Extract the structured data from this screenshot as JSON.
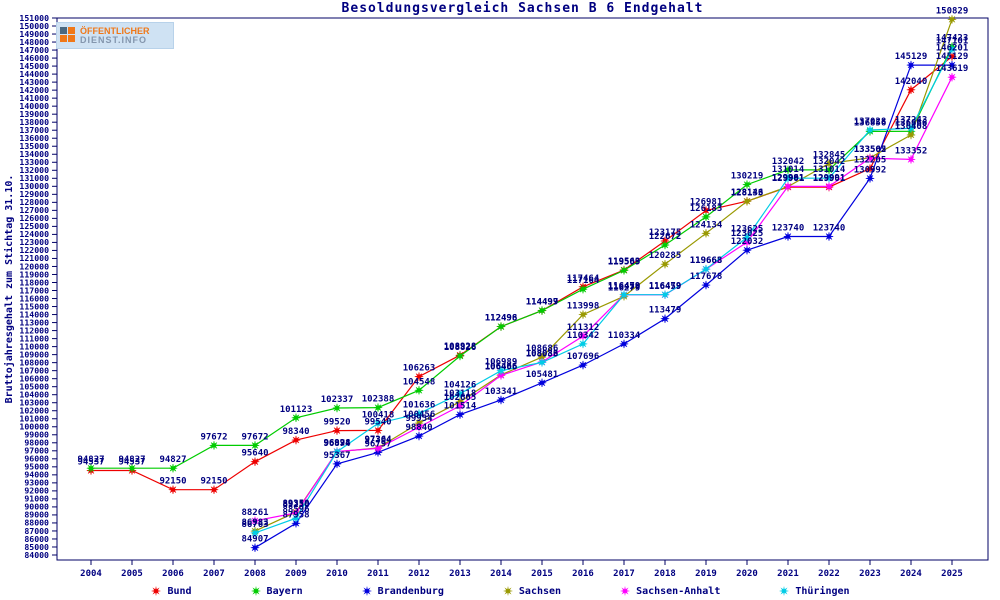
{
  "page": {
    "title": "Besoldungsvergleich Sachsen B 6 Endgehalt"
  },
  "logo": {
    "line1": "ÖFFENTLICHER",
    "line2": "DIENST.INFO"
  },
  "chart_data": {
    "type": "line",
    "title": "Besoldungsvergleich Sachsen B 6 Endgehalt",
    "xlabel": "",
    "ylabel": "Bruttojahresgehalt zum Stichtag 31.10.",
    "ylim": [
      84000,
      151000
    ],
    "ytick_step": 1000,
    "grid": false,
    "point_labels": true,
    "legend_position": "bottom",
    "axis_color": "#000066",
    "label_color": "#000080",
    "x": [
      2004,
      2005,
      2006,
      2007,
      2008,
      2009,
      2010,
      2011,
      2012,
      2013,
      2014,
      2015,
      2016,
      2017,
      2018,
      2019,
      2020,
      2021,
      2022,
      2023,
      2024,
      2025
    ],
    "series": [
      {
        "name": "Bund",
        "color": "#ee0000",
        "values": [
          94537,
          94537,
          92150,
          92150,
          95640,
          98340,
          99520,
          99540,
          106263,
          108928,
          112496,
          114499,
          117464,
          119563,
          123175,
          126981,
          128146,
          129901,
          129901,
          132205,
          142040,
          146201
        ]
      },
      {
        "name": "Bayern",
        "color": "#00cc00",
        "values": [
          94827,
          94827,
          94827,
          97672,
          97672,
          101123,
          102337,
          102388,
          104548,
          108826,
          112498,
          114497,
          117164,
          119509,
          122672,
          126183,
          130219,
          132042,
          132042,
          136856,
          136866,
          147423
        ]
      },
      {
        "name": "Brandenburg",
        "color": "#0000dd",
        "values": [
          null,
          null,
          null,
          null,
          84907,
          87958,
          95367,
          96797,
          98840,
          101514,
          103341,
          105481,
          107696,
          110334,
          113479,
          117678,
          122032,
          123740,
          123740,
          130992,
          145129,
          145129
        ]
      },
      {
        "name": "Sachsen",
        "color": "#999900",
        "values": [
          null,
          null,
          null,
          null,
          86983,
          89350,
          96874,
          97364,
          100456,
          103118,
          106466,
          108686,
          113998,
          116279,
          120285,
          124134,
          128133,
          129961,
          132845,
          133562,
          136408,
          150829
        ]
      },
      {
        "name": "Sachsen-Anhalt",
        "color": "#ff00ff",
        "values": [
          null,
          null,
          null,
          null,
          88261,
          89250,
          96928,
          97304,
          99954,
          102605,
          106406,
          108086,
          111312,
          116459,
          116459,
          119663,
          123025,
          129991,
          129991,
          133505,
          133352,
          143619
        ]
      },
      {
        "name": "Thüringen",
        "color": "#00cce6",
        "values": [
          null,
          null,
          null,
          null,
          86763,
          88596,
          96894,
          100418,
          101636,
          104126,
          106989,
          108033,
          110342,
          116479,
          116479,
          119668,
          123625,
          131014,
          131014,
          137028,
          137243,
          147101
        ]
      }
    ]
  }
}
